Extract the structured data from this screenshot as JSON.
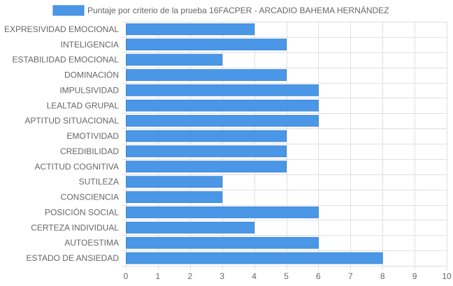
{
  "chart_data": {
    "type": "bar",
    "orientation": "horizontal",
    "legend": {
      "label": "Puntaje por criterio de la prueba 16FACPER - ARCADIO BAHEMA HERNÁNDEZ",
      "position": "top"
    },
    "categories": [
      "EXPRESIVIDAD EMOCIONAL",
      "INTELIGENCIA",
      "ESTABILIDAD EMOCIONAL",
      "DOMINACIÓN",
      "IMPULSIVIDAD",
      "LEALTAD GRUPAL",
      "APTITUD SITUACIONAL",
      "EMOTIVIDAD",
      "CREDIBILIDAD",
      "ACTITUD COGNITIVA",
      "SUTILEZA",
      "CONSCIENCIA",
      "POSICIÓN SOCIAL",
      "CERTEZA INDIVIDUAL",
      "AUTOESTIMA",
      "ESTADO DE ANSIEDAD"
    ],
    "series": [
      {
        "name": "Puntaje por criterio de la prueba 16FACPER - ARCADIO BAHEMA HERNÁNDEZ",
        "values": [
          4,
          5,
          3,
          5,
          6,
          6,
          6,
          5,
          5,
          5,
          3,
          3,
          6,
          4,
          6,
          8
        ]
      }
    ],
    "xlim": [
      0,
      10
    ],
    "xticks": [
      0,
      1,
      2,
      3,
      4,
      5,
      6,
      7,
      8,
      9,
      10
    ],
    "grid": true,
    "colors": {
      "bar_fill": "#4a97e8",
      "bar_stroke": "#3a85d6",
      "grid": "#e0e0e0",
      "text": "#666666"
    }
  }
}
